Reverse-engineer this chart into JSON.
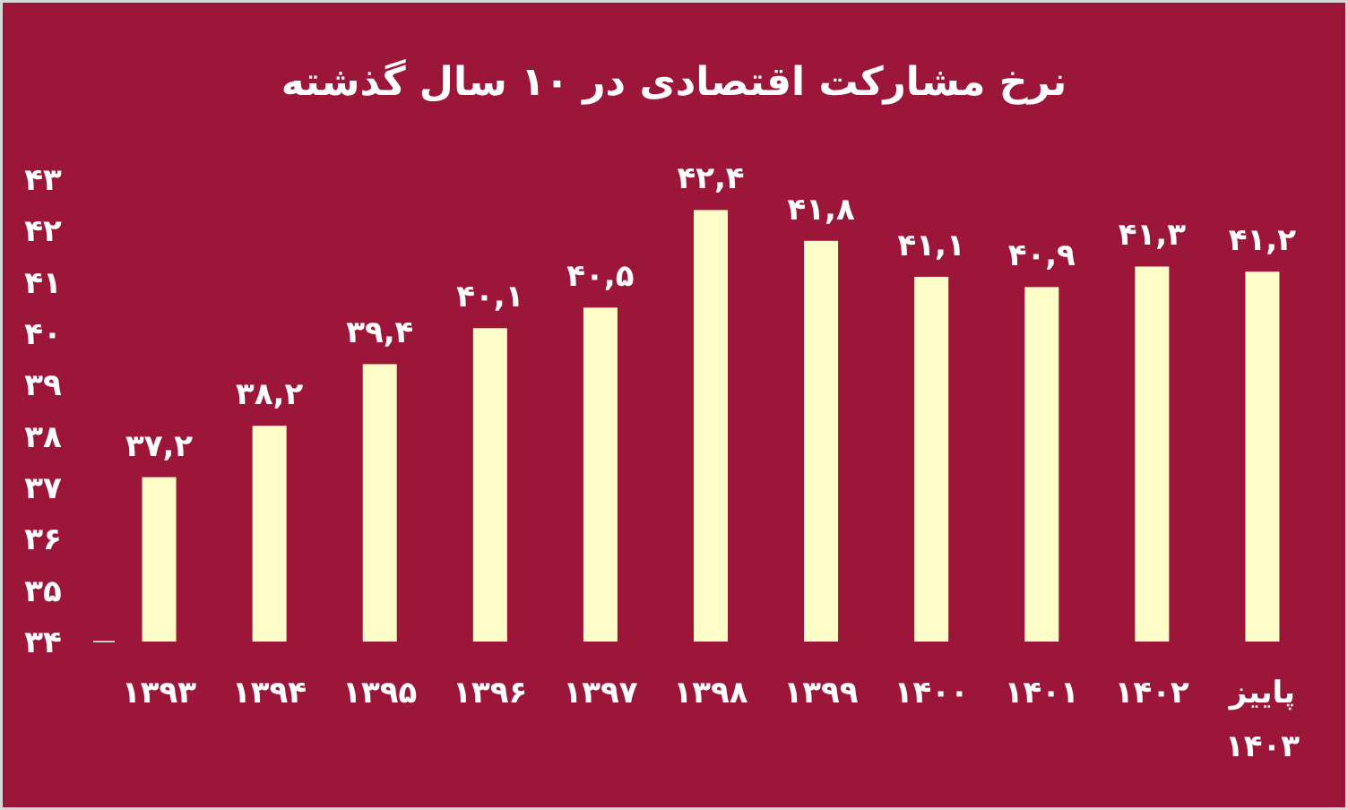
{
  "chart_data": {
    "type": "bar",
    "title": "نرخ مشارکت اقتصادی در ۱۰ سال گذشته",
    "categories": [
      "۱۳۹۳",
      "۱۳۹۴",
      "۱۳۹۵",
      "۱۳۹۶",
      "۱۳۹۷",
      "۱۳۹۸",
      "۱۳۹۹",
      "۱۴۰۰",
      "۱۴۰۱",
      "۱۴۰۲",
      "پاییز ۱۴۰۳"
    ],
    "values": [
      37.2,
      38.2,
      39.4,
      40.1,
      40.5,
      42.4,
      41.8,
      41.1,
      40.9,
      41.3,
      41.2
    ],
    "value_labels": [
      "۳۷,۲",
      "۳۸,۲",
      "۳۹,۴",
      "۴۰,۱",
      "۴۰,۵",
      "۴۲,۴",
      "۴۱,۸",
      "۴۱,۱",
      "۴۰,۹",
      "۴۱,۳",
      "۴۱,۲"
    ],
    "color": "#fffdc8",
    "ylim": [
      34,
      43
    ],
    "yticks": [
      {
        "value": 34,
        "label": "۳۴"
      },
      {
        "value": 35,
        "label": "۳۵"
      },
      {
        "value": 36,
        "label": "۳۶"
      },
      {
        "value": 37,
        "label": "۳۷"
      },
      {
        "value": 38,
        "label": "۳۸"
      },
      {
        "value": 39,
        "label": "۳۹"
      },
      {
        "value": 40,
        "label": "۴۰"
      },
      {
        "value": 41,
        "label": "۴۱"
      },
      {
        "value": 42,
        "label": "۴۲"
      },
      {
        "value": 43,
        "label": "۴۳"
      }
    ],
    "grid": false
  }
}
